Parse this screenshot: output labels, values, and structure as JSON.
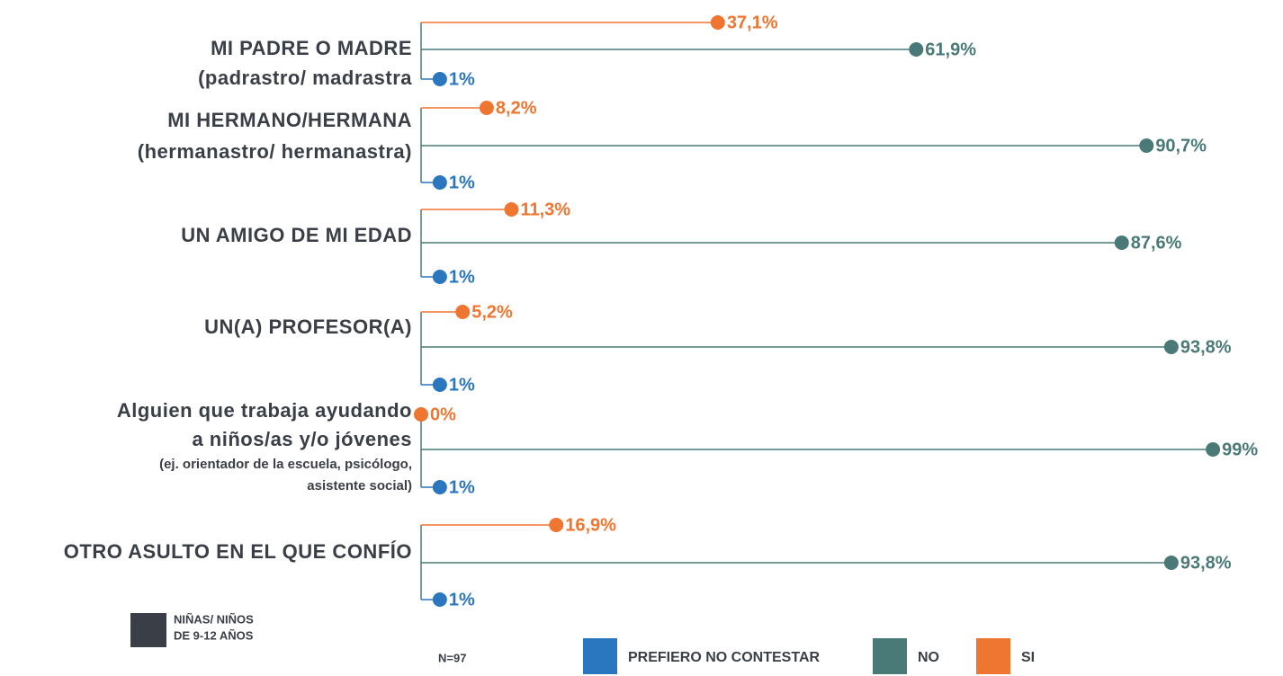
{
  "chart_data": {
    "type": "lollipop",
    "categories": [
      [
        "MI PADRE O MADRE",
        "(padrastro/ madrastra"
      ],
      [
        "MI HERMANO/HERMANA",
        "(hermanastro/ hermanastra)"
      ],
      [
        "UN AMIGO DE MI EDAD"
      ],
      [
        "UN(A) PROFESOR(A)"
      ],
      [
        "Alguien que trabaja ayudando",
        "a niños/as y/o jóvenes"
      ],
      [
        "OTRO ASULTO EN EL QUE CONFÍO"
      ]
    ],
    "category_notes": [
      null,
      null,
      null,
      null,
      [
        "(ej. orientador de la escuela, psicólogo,",
        "asistente social)"
      ],
      null
    ],
    "series": [
      {
        "name": "SI",
        "color": "#ef7631",
        "values": [
          37.1,
          8.2,
          11.3,
          5.2,
          0,
          16.9
        ],
        "value_labels": [
          "37,1%",
          "8,2%",
          "11,3%",
          "5,2%",
          "0%",
          "16,9%"
        ]
      },
      {
        "name": "NO",
        "color": "#4a7a78",
        "values": [
          61.9,
          90.7,
          87.6,
          93.8,
          99,
          93.8
        ],
        "value_labels": [
          "61,9%",
          "90,7%",
          "87,6%",
          "93,8%",
          "99%",
          "93,8%"
        ]
      },
      {
        "name": "PREFIERO NO CONTESTAR",
        "color": "#2a77bf",
        "values": [
          1,
          1,
          1,
          1,
          1,
          1
        ],
        "value_labels": [
          "1%",
          "1%",
          "1%",
          "1%",
          "1%",
          "1%"
        ]
      }
    ],
    "xlim": [
      0,
      100
    ],
    "note": "N=97",
    "group_label": [
      "NIÑAS/ NIÑOS",
      "DE 9-12 AÑOS"
    ],
    "group_color": "#3a3f47"
  }
}
